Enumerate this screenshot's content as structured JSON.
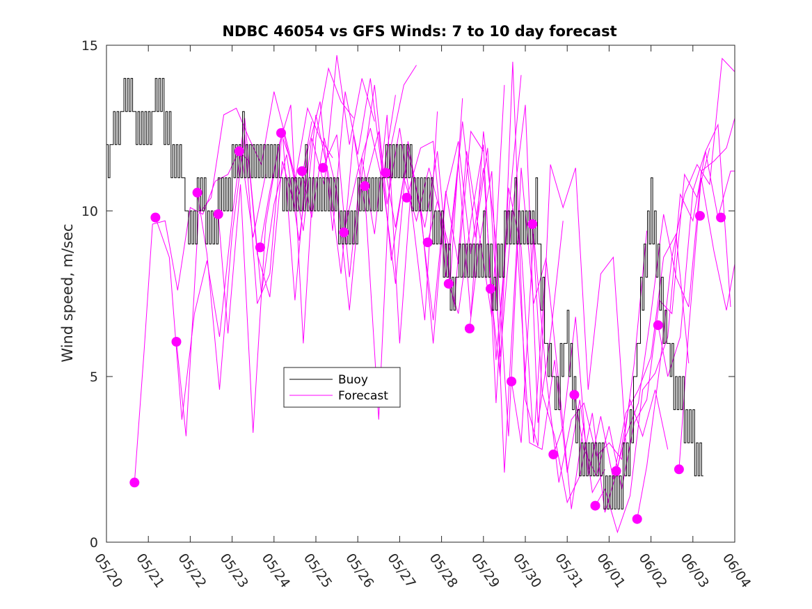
{
  "chart_data": {
    "type": "line",
    "title": "NDBC 46054 vs GFS Winds: 7 to 10 day forecast",
    "xlabel": "",
    "ylabel": "Wind speed, m/sec",
    "ylim": [
      0,
      15
    ],
    "y_ticks": [
      0,
      5,
      10,
      15
    ],
    "x_ticks": [
      "05/20",
      "05/21",
      "05/22",
      "05/23",
      "05/24",
      "05/25",
      "05/26",
      "05/27",
      "05/28",
      "05/29",
      "05/30",
      "05/31",
      "06/01",
      "06/02",
      "06/03",
      "06/04"
    ],
    "xlim_days": [
      0,
      15
    ],
    "grid": false,
    "legend": {
      "placement": "center-left",
      "entries": [
        {
          "name": "Buoy",
          "color": "#000000"
        },
        {
          "name": "Forecast",
          "color": "#ff00ff"
        }
      ]
    },
    "colors": {
      "buoy": "#000000",
      "forecast": "#ff00ff"
    },
    "buoy_series": {
      "name": "Buoy",
      "day_offset": [
        0.0,
        0.25,
        0.5,
        0.75,
        1.0,
        1.25,
        1.5,
        1.75,
        2.0,
        2.25,
        2.5,
        2.75,
        3.0,
        3.25,
        3.5,
        3.75,
        4.0,
        4.25,
        4.5,
        4.75,
        5.0,
        5.25,
        5.5,
        5.75,
        6.0,
        6.25,
        6.5,
        6.75,
        7.0,
        7.25,
        7.5,
        7.75,
        8.0,
        8.25,
        8.5,
        8.75,
        9.0,
        9.25,
        9.5,
        9.75,
        10.0,
        10.25,
        10.5,
        10.75,
        11.0,
        11.25,
        11.5,
        11.75,
        12.0,
        12.25,
        12.5,
        12.75,
        13.0,
        13.25,
        13.5,
        13.75,
        14.0,
        14.25
      ],
      "values": [
        11.5,
        12.5,
        13.5,
        12.5,
        12.5,
        13.5,
        12.0,
        11.5,
        9.0,
        10.5,
        9.0,
        10.5,
        11.0,
        12.0,
        11.5,
        11.0,
        11.5,
        10.5,
        10.0,
        11.0,
        10.5,
        10.0,
        10.0,
        9.5,
        10.0,
        10.5,
        10.5,
        11.5,
        11.5,
        11.0,
        10.5,
        10.0,
        9.0,
        7.5,
        8.5,
        8.0,
        9.0,
        7.5,
        9.0,
        10.0,
        9.5,
        10.0,
        5.5,
        4.5,
        6.5,
        3.0,
        2.0,
        2.5,
        1.0,
        1.5,
        3.0,
        7.0,
        10.0,
        7.0,
        5.0,
        4.0,
        3.0,
        2.5
      ]
    },
    "forecast_markers": {
      "day_offset": [
        0.67,
        1.17,
        1.67,
        2.17,
        2.67,
        3.17,
        3.67,
        4.17,
        4.67,
        5.17,
        5.67,
        6.17,
        6.67,
        7.17,
        7.67,
        8.17,
        8.67,
        9.17,
        9.67,
        10.17,
        10.67,
        11.17,
        11.67,
        12.17,
        12.67,
        13.17,
        13.67,
        14.17,
        14.67
      ],
      "values": [
        1.8,
        9.8,
        6.05,
        10.55,
        9.9,
        11.8,
        8.9,
        12.35,
        11.2,
        11.3,
        9.35,
        10.75,
        11.15,
        10.4,
        9.05,
        7.8,
        6.45,
        7.65,
        4.85,
        9.6,
        2.65,
        4.45,
        1.1,
        2.15,
        0.7,
        6.55,
        2.2,
        9.85,
        9.8
      ]
    },
    "forecast_runs": [
      {
        "day_offset": [
          0.67,
          0.9,
          1.1,
          1.4,
          1.7,
          2.0,
          2.3,
          2.6,
          2.9,
          3.2,
          3.5,
          3.8
        ],
        "values": [
          1.8,
          5.8,
          9.6,
          9.7,
          7.6,
          10.1,
          9.9,
          10.9,
          11.1,
          11.9,
          9.2,
          11.1
        ]
      },
      {
        "day_offset": [
          1.17,
          1.5,
          1.8,
          2.1,
          2.4,
          2.7,
          3.0,
          3.3,
          3.6,
          3.9,
          4.2,
          4.5
        ],
        "values": [
          9.8,
          8.6,
          3.7,
          6.9,
          8.5,
          6.2,
          9.8,
          12.8,
          8.7,
          7.4,
          11.5,
          10.1
        ]
      },
      {
        "day_offset": [
          1.67,
          1.9,
          2.2,
          2.5,
          2.8,
          3.1,
          3.4,
          3.7,
          4.0,
          4.3,
          4.6,
          4.9
        ],
        "values": [
          6.05,
          3.2,
          9.9,
          10.4,
          12.9,
          13.1,
          12.2,
          11.4,
          13.6,
          12.1,
          10.5,
          12.7
        ]
      },
      {
        "day_offset": [
          2.17,
          2.4,
          2.7,
          3.0,
          3.3,
          3.6,
          3.9,
          4.2,
          4.5,
          4.8,
          5.1,
          5.4
        ],
        "values": [
          10.55,
          8.7,
          4.6,
          9.3,
          12.3,
          7.2,
          8.1,
          12.5,
          10.9,
          13.1,
          12.2,
          11.6
        ]
      },
      {
        "day_offset": [
          2.67,
          2.9,
          3.2,
          3.5,
          3.8,
          4.1,
          4.4,
          4.7,
          5.0,
          5.3,
          5.6,
          5.9
        ],
        "values": [
          9.9,
          6.3,
          10.8,
          3.3,
          9.6,
          11.9,
          13.2,
          6.0,
          12.2,
          14.3,
          13.3,
          12.8
        ]
      },
      {
        "day_offset": [
          3.17,
          3.4,
          3.7,
          4.0,
          4.3,
          4.6,
          4.9,
          5.2,
          5.5,
          5.8,
          6.1,
          6.4
        ],
        "values": [
          11.8,
          11.5,
          7.5,
          10.2,
          11.7,
          9.1,
          12.2,
          10.8,
          14.7,
          12.0,
          14.0,
          12.7
        ]
      },
      {
        "day_offset": [
          3.67,
          3.9,
          4.2,
          4.5,
          4.8,
          5.1,
          5.4,
          5.7,
          6.0,
          6.3,
          6.6,
          6.9
        ],
        "values": [
          8.9,
          10.6,
          12.4,
          7.3,
          11.8,
          13.3,
          9.4,
          13.6,
          11.7,
          14.0,
          11.0,
          13.5
        ]
      },
      {
        "day_offset": [
          4.17,
          4.4,
          4.7,
          5.0,
          5.3,
          5.6,
          5.9,
          6.2,
          6.5,
          6.8,
          7.1,
          7.4
        ],
        "values": [
          12.35,
          11.5,
          9.4,
          12.9,
          11.1,
          8.1,
          12.3,
          9.9,
          3.7,
          12.0,
          13.8,
          14.4
        ]
      },
      {
        "day_offset": [
          4.67,
          4.9,
          5.2,
          5.5,
          5.8,
          6.1,
          6.4,
          6.7,
          7.0,
          7.3,
          7.6,
          7.9
        ],
        "values": [
          11.2,
          9.8,
          12.2,
          10.6,
          7.0,
          11.1,
          13.8,
          10.2,
          12.5,
          9.9,
          6.7,
          13.0
        ]
      },
      {
        "day_offset": [
          5.17,
          5.5,
          5.8,
          6.1,
          6.4,
          6.7,
          7.0,
          7.3,
          7.6,
          7.9,
          8.2,
          8.5
        ],
        "values": [
          11.3,
          12.3,
          8.0,
          11.6,
          9.3,
          12.9,
          6.0,
          11.2,
          9.5,
          11.8,
          7.7,
          13.4
        ]
      },
      {
        "day_offset": [
          5.67,
          6.0,
          6.3,
          6.6,
          6.9,
          7.2,
          7.5,
          7.8,
          8.1,
          8.4,
          8.7,
          9.0
        ],
        "values": [
          9.35,
          11.2,
          12.5,
          10.8,
          7.8,
          12.1,
          9.9,
          6.7,
          10.6,
          8.4,
          12.4,
          11.8
        ]
      },
      {
        "day_offset": [
          6.17,
          6.5,
          6.8,
          7.1,
          7.4,
          7.7,
          8.0,
          8.3,
          8.6,
          8.9,
          9.2,
          9.5
        ],
        "values": [
          10.75,
          12.4,
          8.5,
          11.0,
          9.7,
          11.3,
          9.8,
          7.1,
          11.8,
          9.3,
          6.8,
          13.8
        ]
      },
      {
        "day_offset": [
          6.67,
          6.9,
          7.2,
          7.5,
          7.8,
          8.1,
          8.4,
          8.7,
          9.0,
          9.3,
          9.6,
          9.9
        ],
        "values": [
          11.15,
          9.5,
          11.8,
          10.1,
          6.0,
          10.5,
          12.1,
          8.7,
          11.3,
          5.5,
          9.9,
          14.1
        ]
      },
      {
        "day_offset": [
          7.17,
          7.5,
          7.8,
          8.1,
          8.4,
          8.7,
          9.0,
          9.3,
          9.6,
          9.9,
          10.2,
          10.5
        ],
        "values": [
          10.4,
          11.9,
          12.1,
          8.0,
          11.5,
          6.8,
          12.4,
          9.1,
          3.2,
          11.3,
          7.2,
          8.6
        ]
      },
      {
        "day_offset": [
          7.67,
          7.9,
          8.2,
          8.5,
          8.8,
          9.1,
          9.4,
          9.7,
          10.0,
          10.3,
          10.6,
          10.9
        ],
        "values": [
          9.05,
          10.3,
          8.8,
          12.7,
          9.2,
          11.9,
          5.6,
          10.1,
          13.2,
          3.6,
          6.2,
          9.7
        ]
      },
      {
        "day_offset": [
          8.17,
          8.4,
          8.7,
          9.0,
          9.3,
          9.6,
          9.9,
          10.2,
          10.5,
          10.8,
          11.1,
          11.4
        ],
        "values": [
          7.8,
          6.9,
          9.7,
          12.0,
          4.2,
          10.7,
          8.9,
          3.0,
          8.5,
          4.8,
          1.0,
          3.6
        ]
      },
      {
        "day_offset": [
          8.67,
          8.9,
          9.2,
          9.5,
          9.8,
          10.1,
          10.4,
          10.7,
          11.0,
          11.3,
          11.6,
          11.9
        ],
        "values": [
          6.45,
          9.0,
          11.2,
          2.1,
          9.1,
          3.0,
          2.8,
          5.5,
          2.1,
          4.3,
          1.5,
          2.2
        ]
      },
      {
        "day_offset": [
          9.17,
          9.4,
          9.7,
          10.0,
          10.3,
          10.6,
          10.9,
          11.2,
          11.5,
          11.8,
          12.1,
          12.4
        ],
        "values": [
          7.65,
          5.0,
          14.5,
          4.3,
          2.9,
          11.4,
          10.1,
          11.3,
          4.6,
          8.1,
          8.6,
          3.0
        ]
      },
      {
        "day_offset": [
          9.67,
          9.9,
          10.2,
          10.5,
          10.8,
          11.1,
          11.4,
          11.7,
          12.0,
          12.3,
          12.6,
          12.9
        ],
        "values": [
          4.85,
          3.0,
          9.3,
          5.0,
          1.8,
          3.7,
          4.2,
          2.6,
          3.0,
          2.5,
          5.4,
          9.4
        ]
      },
      {
        "day_offset": [
          10.17,
          10.4,
          10.7,
          11.0,
          11.3,
          11.6,
          11.9,
          12.2,
          12.5,
          12.8,
          13.1,
          13.4
        ],
        "values": [
          9.6,
          4.5,
          3.2,
          1.2,
          2.0,
          3.9,
          0.9,
          2.2,
          4.3,
          3.2,
          4.6,
          2.8
        ]
      },
      {
        "day_offset": [
          10.67,
          10.9,
          11.2,
          11.5,
          11.8,
          12.1,
          12.4,
          12.7,
          13.0,
          13.3,
          13.6,
          13.9
        ],
        "values": [
          2.65,
          3.5,
          6.8,
          2.0,
          3.8,
          1.9,
          3.9,
          4.6,
          5.6,
          8.6,
          9.3,
          5.4
        ]
      },
      {
        "day_offset": [
          11.17,
          11.4,
          11.7,
          12.0,
          12.3,
          12.6,
          12.9,
          13.2,
          13.5,
          13.8,
          14.1,
          14.4
        ],
        "values": [
          4.45,
          2.8,
          2.0,
          3.5,
          1.6,
          3.6,
          4.3,
          7.3,
          6.9,
          11.1,
          10.4,
          11.9
        ]
      },
      {
        "day_offset": [
          11.67,
          11.9,
          12.2,
          12.5,
          12.8,
          13.1,
          13.4,
          13.7,
          14.0,
          14.3,
          14.6,
          14.9
        ],
        "values": [
          1.1,
          1.6,
          0.3,
          1.4,
          4.6,
          5.1,
          6.2,
          10.5,
          9.7,
          11.8,
          12.6,
          7.1
        ]
      },
      {
        "day_offset": [
          12.17,
          12.4,
          12.7,
          13.0,
          13.3,
          13.6,
          13.9,
          14.2,
          14.5,
          14.8,
          15.0
        ],
        "values": [
          2.15,
          3.2,
          4.2,
          6.9,
          9.9,
          8.0,
          7.1,
          11.2,
          11.5,
          11.9,
          12.8
        ]
      },
      {
        "day_offset": [
          12.67,
          12.9,
          13.2,
          13.5,
          13.8,
          14.1,
          14.4,
          14.7,
          15.0
        ],
        "values": [
          0.7,
          2.3,
          5.2,
          8.6,
          10.5,
          11.4,
          10.8,
          14.6,
          14.2
        ]
      },
      {
        "day_offset": [
          13.17,
          13.4,
          13.7,
          14.0,
          14.3,
          14.6,
          14.9,
          15.0
        ],
        "values": [
          6.55,
          5.0,
          6.2,
          10.6,
          11.8,
          9.8,
          11.2,
          11.2
        ]
      },
      {
        "day_offset": [
          13.67,
          13.9,
          14.2,
          14.5,
          14.8,
          15.0
        ],
        "values": [
          2.2,
          6.4,
          11.0,
          8.8,
          7.0,
          8.4
        ]
      }
    ]
  }
}
